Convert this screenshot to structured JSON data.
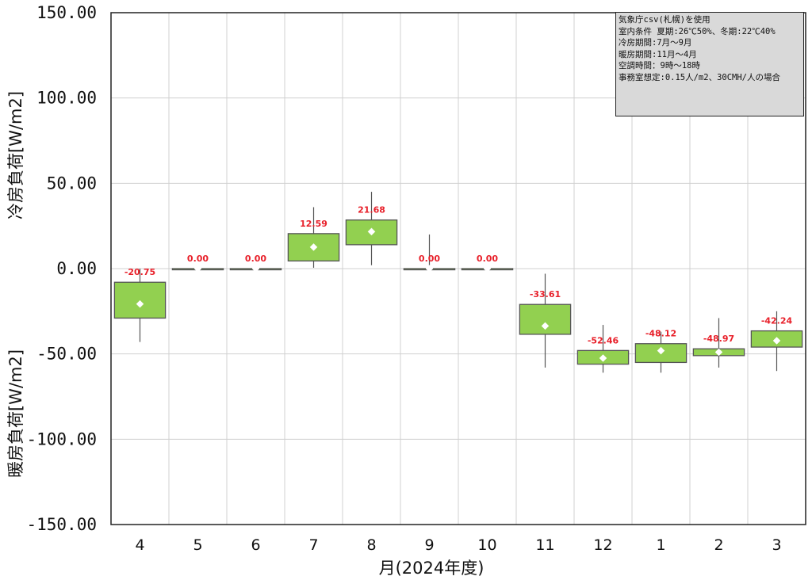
{
  "chart_data": {
    "type": "box",
    "xlabel": "月(2024年度)",
    "ylabel_top": "冷房負荷[W/m2]",
    "ylabel_bottom": "暖房負荷[W/m2]",
    "ylim": [
      -150,
      150
    ],
    "yticks": [
      150,
      100,
      50,
      0,
      -50,
      -100,
      -150
    ],
    "ytick_labels": [
      "150.00",
      "100.00",
      "50.00",
      "0.00",
      "-50.00",
      "-100.00",
      "-150.00"
    ],
    "grid": true,
    "box_color": "#92d050",
    "label_color": "#e8202a",
    "categories": [
      "4",
      "5",
      "6",
      "7",
      "8",
      "9",
      "10",
      "11",
      "12",
      "1",
      "2",
      "3"
    ],
    "boxes": [
      {
        "month": "4",
        "whisker_low": -43,
        "q1": -29,
        "q3": -8,
        "whisker_high": 0,
        "mean": -20.75,
        "label": "-20.75"
      },
      {
        "month": "5",
        "whisker_low": 0,
        "q1": 0,
        "q3": 0,
        "whisker_high": 0,
        "mean": 0,
        "label": "0.00"
      },
      {
        "month": "6",
        "whisker_low": 0,
        "q1": 0,
        "q3": 0,
        "whisker_high": 0,
        "mean": 0,
        "label": "0.00"
      },
      {
        "month": "7",
        "whisker_low": 0.5,
        "q1": 4.5,
        "q3": 20.5,
        "whisker_high": 36,
        "mean": 12.59,
        "label": "12.59"
      },
      {
        "month": "8",
        "whisker_low": 2,
        "q1": 14,
        "q3": 28.5,
        "whisker_high": 45,
        "mean": 21.68,
        "label": "21.68"
      },
      {
        "month": "9",
        "whisker_low": 0,
        "q1": 0,
        "q3": 0,
        "whisker_high": 20,
        "mean": 0,
        "label": "0.00"
      },
      {
        "month": "10",
        "whisker_low": 0,
        "q1": 0,
        "q3": 0,
        "whisker_high": 0,
        "mean": 0,
        "label": "0.00"
      },
      {
        "month": "11",
        "whisker_low": -58,
        "q1": -38.5,
        "q3": -21,
        "whisker_high": -3,
        "mean": -33.61,
        "label": "-33.61"
      },
      {
        "month": "12",
        "whisker_low": -61,
        "q1": -56,
        "q3": -48,
        "whisker_high": -33,
        "mean": -52.46,
        "label": "-52.46"
      },
      {
        "month": "1",
        "whisker_low": -61,
        "q1": -55,
        "q3": -44,
        "whisker_high": -37,
        "mean": -48.12,
        "label": "-48.12"
      },
      {
        "month": "2",
        "whisker_low": -58,
        "q1": -51,
        "q3": -47,
        "whisker_high": -29,
        "mean": -48.97,
        "label": "-48.97"
      },
      {
        "month": "3",
        "whisker_low": -60,
        "q1": -46,
        "q3": -36.5,
        "whisker_high": -25,
        "mean": -42.24,
        "label": "-42.24"
      }
    ],
    "notes": [
      "気象庁csv(札幌)を使用",
      "室内条件 夏期:26℃50%、冬期:22℃40%",
      "冷房期間:7月～9月",
      "暖房期間:11月～4月",
      "空調時間：9時～18時",
      "事務室想定:0.15人/m2、30CMH/人の場合"
    ]
  }
}
